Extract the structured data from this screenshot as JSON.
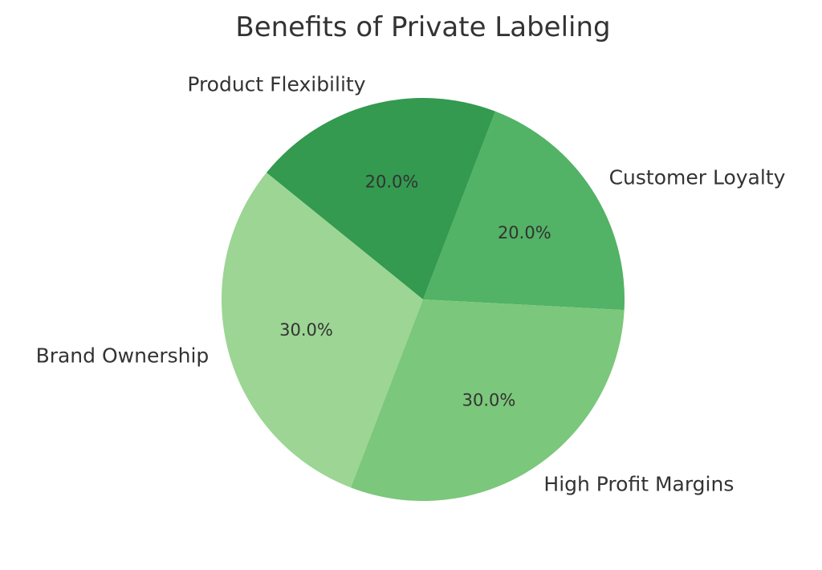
{
  "chart_data": {
    "type": "pie",
    "title": "Benefits of Private Labeling",
    "labels": [
      "Customer Loyalty",
      "Product Flexibility",
      "Brand Ownership",
      "High Profit Margins"
    ],
    "values": [
      20,
      20,
      30,
      30
    ],
    "percent_labels": [
      "20.0%",
      "20.0%",
      "30.0%",
      "30.0%"
    ],
    "colors": [
      "#52b265",
      "#339a4f",
      "#9cd594",
      "#7bc77b"
    ],
    "start_angle_deg": -3,
    "direction": "counterclockwise",
    "legend": "none"
  }
}
